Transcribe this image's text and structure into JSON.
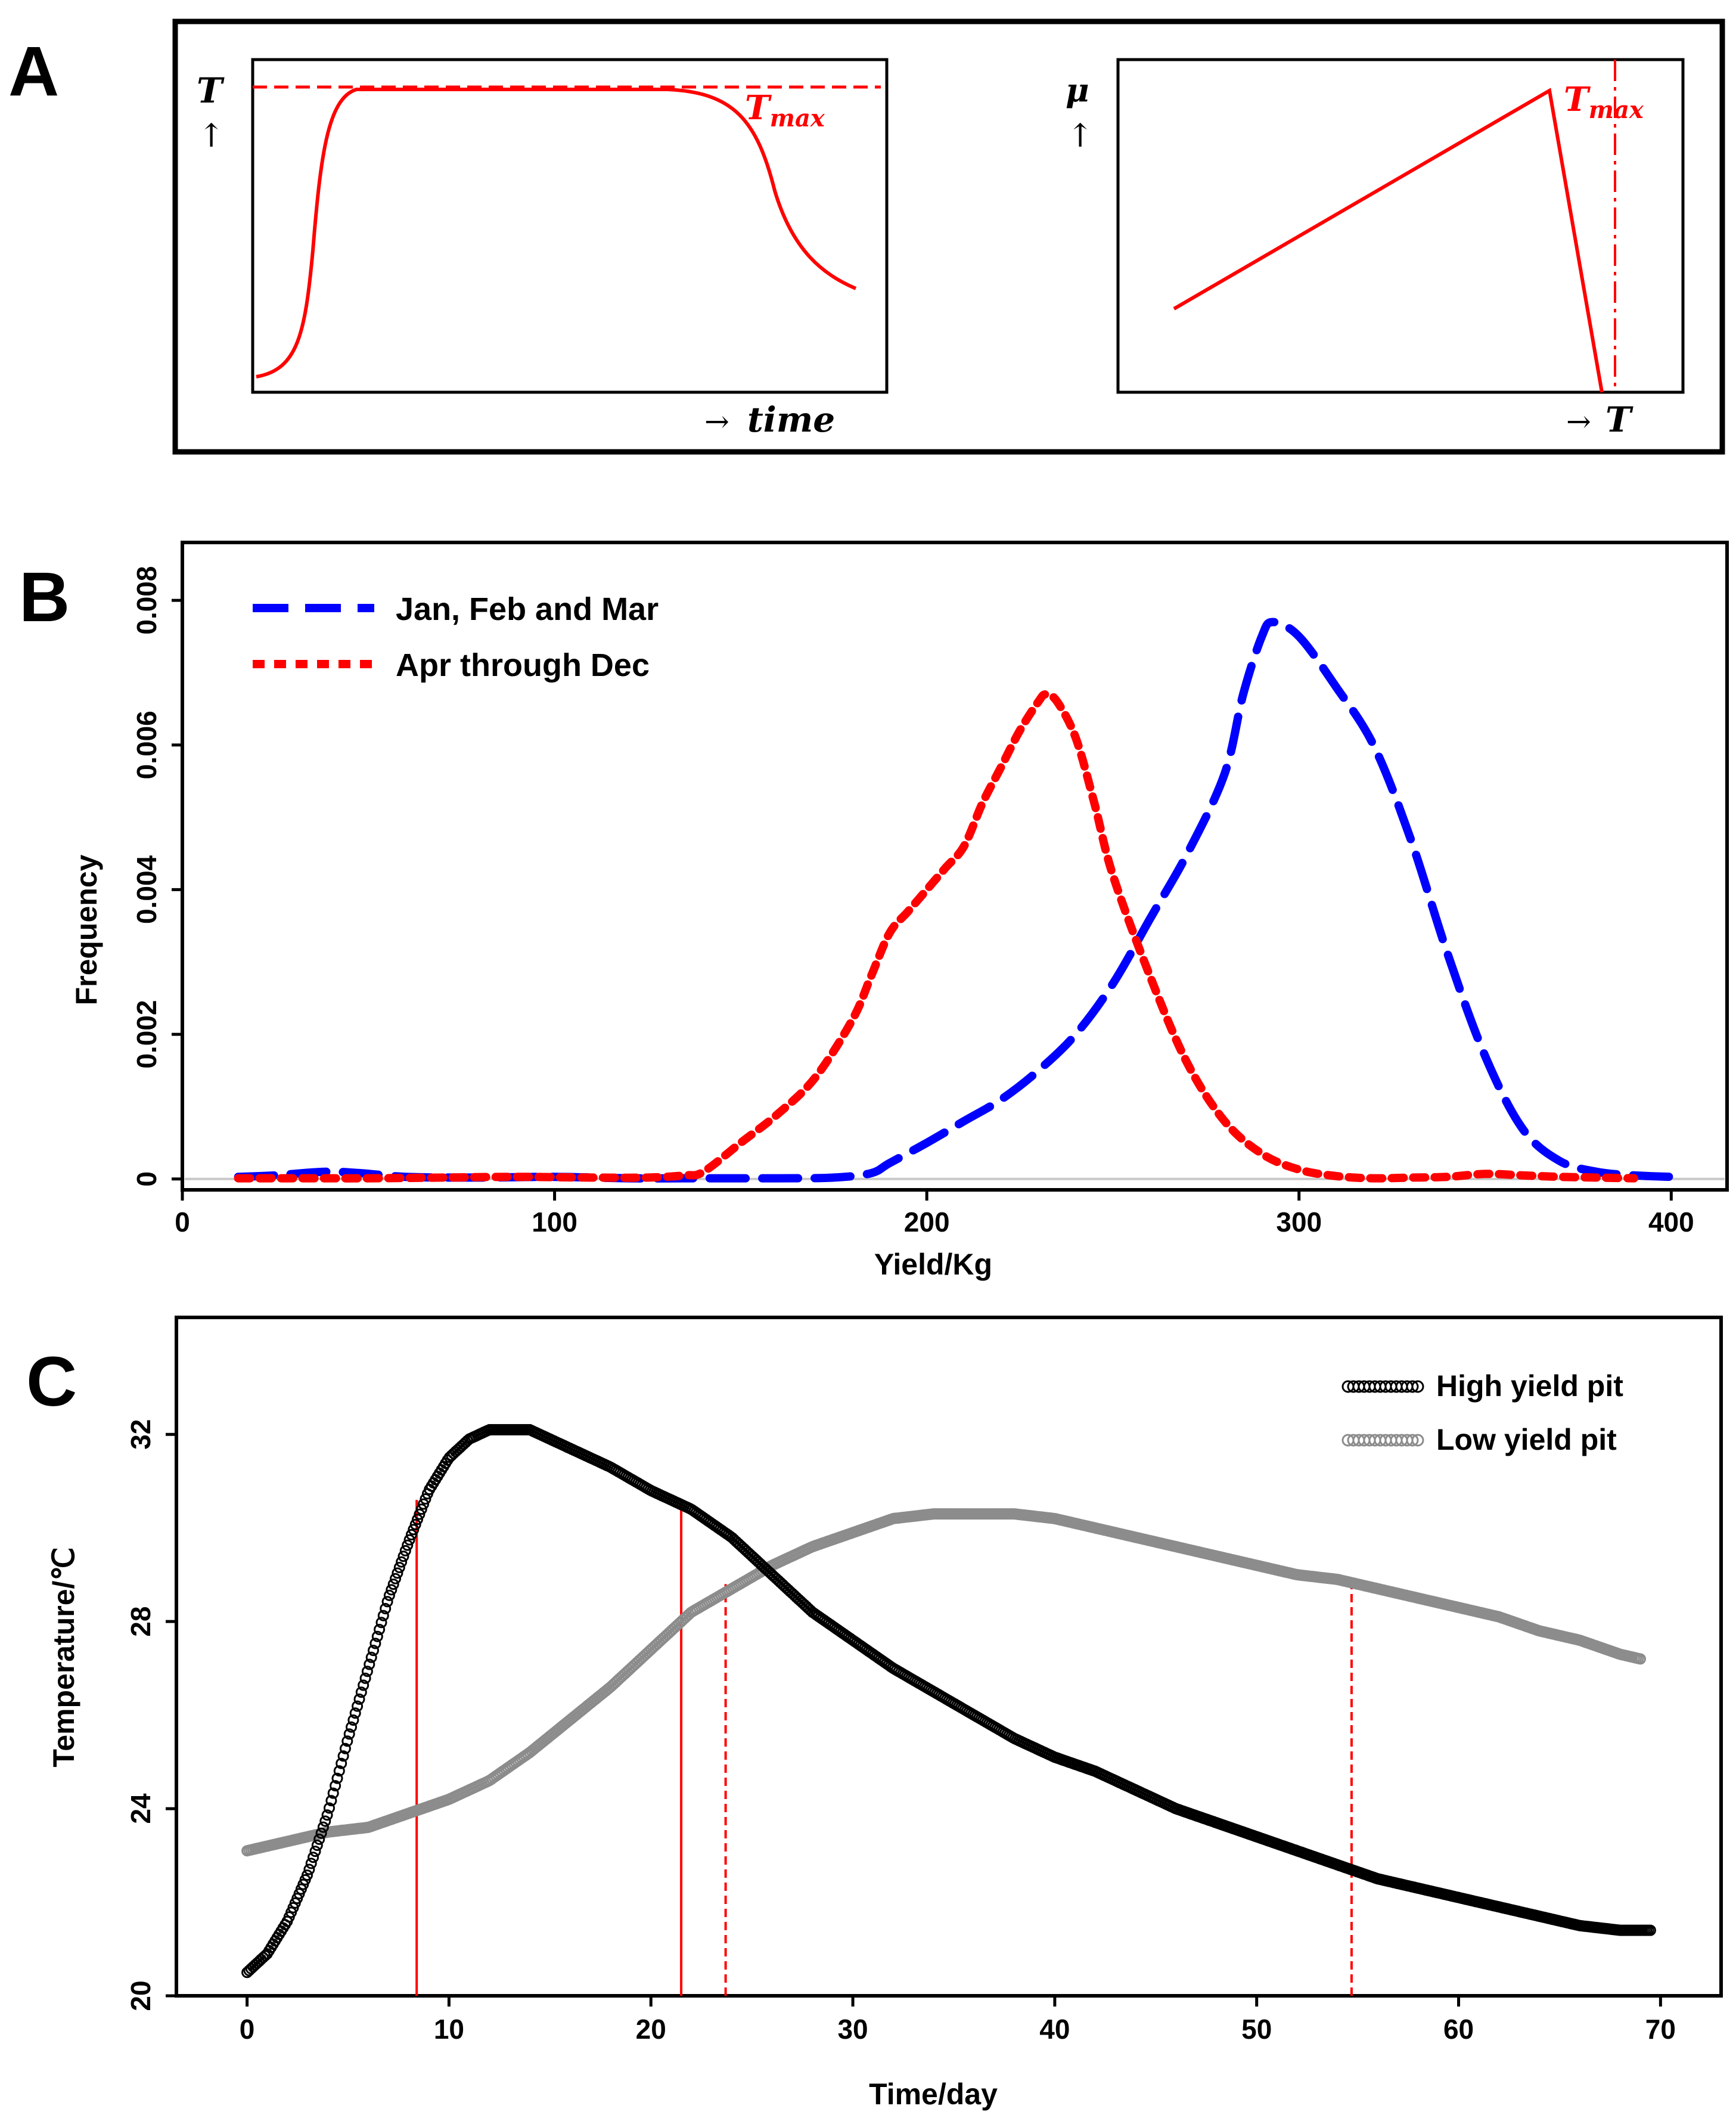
{
  "colors": {
    "red": "#ff0000",
    "blue": "#0000ff",
    "black": "#000000",
    "gray": "#8c8c8c",
    "baseline": "#c8c8c8"
  },
  "panel_a": {
    "letter": "A",
    "left_plot": {
      "y_symbol": "T",
      "y_arrow": "↑",
      "x_arrow": "→",
      "x_label": "time",
      "tmax_main": "T",
      "tmax_sub": "max"
    },
    "right_plot": {
      "y_symbol": "μ",
      "y_arrow": "↑",
      "x_arrow": "→",
      "x_label": "T",
      "tmax_main": "T",
      "tmax_sub": "max"
    }
  },
  "panel_b": {
    "letter": "B",
    "legend": [
      {
        "label": "Jan, Feb and Mar",
        "style": "long-dash",
        "color": "#0000ff"
      },
      {
        "label": "Apr through Dec",
        "style": "short-dash",
        "color": "#ff0000"
      }
    ]
  },
  "panel_c": {
    "letter": "C",
    "legend": [
      {
        "label": "High yield pit",
        "color": "#000000"
      },
      {
        "label": "Low yield pit",
        "color": "#8c8c8c"
      }
    ]
  },
  "chart_data": [
    {
      "type": "line",
      "panel": "A-left",
      "title": "",
      "xlabel": "time",
      "ylabel": "T",
      "annotation": "Tmax",
      "x": [
        0,
        1,
        2,
        3,
        4,
        5,
        6,
        7,
        8,
        9,
        10
      ],
      "series": [
        {
          "name": "T(time)",
          "values": [
            0.06,
            0.95,
            1.0,
            1.0,
            1.0,
            1.0,
            0.99,
            0.95,
            0.84,
            0.61,
            0.36
          ],
          "color": "#ff0000",
          "style": "solid"
        },
        {
          "name": "Tmax",
          "values": [
            1.0,
            1.0,
            1.0,
            1.0,
            1.0,
            1.0,
            1.0,
            1.0,
            1.0,
            1.0,
            1.0
          ],
          "color": "#ff0000",
          "style": "dashed"
        }
      ]
    },
    {
      "type": "line",
      "panel": "A-right",
      "title": "",
      "xlabel": "T",
      "ylabel": "μ",
      "annotation": "Tmax",
      "x": [
        0.0,
        0.78,
        0.85
      ],
      "series": [
        {
          "name": "μ(T)",
          "values": [
            0.26,
            0.95,
            0.0
          ],
          "color": "#ff0000",
          "style": "solid"
        }
      ],
      "vline": {
        "name": "Tmax",
        "x": 0.87,
        "color": "#ff0000",
        "style": "dash-dot"
      }
    },
    {
      "type": "line",
      "panel": "B",
      "title": "",
      "xlabel": "Yield/Kg",
      "ylabel": "Frequency",
      "xlim": [
        0,
        415
      ],
      "ylim": [
        -0.00015,
        0.0088
      ],
      "xticks": [
        0,
        100,
        200,
        300,
        400
      ],
      "yticks": [
        0,
        0.002,
        0.004,
        0.006,
        0.008
      ],
      "ytick_labels": [
        "0",
        "0.002",
        "0.004",
        "0.006",
        "0.008"
      ],
      "series": [
        {
          "name": "Jan, Feb and Mar",
          "style": "long-dash",
          "color": "#0000ff",
          "x": [
            15,
            25,
            38,
            48,
            60,
            80,
            100,
            120,
            140,
            160,
            175,
            185,
            190,
            200,
            210,
            220,
            230,
            240,
            250,
            260,
            270,
            280,
            285,
            290,
            293,
            300,
            310,
            320,
            330,
            340,
            350,
            360,
            370,
            380,
            390,
            400
          ],
          "y": [
            3e-05,
            5e-05,
            0.0001,
            8e-05,
            3e-05,
            2e-05,
            3e-05,
            1e-05,
            1e-05,
            1e-05,
            2e-05,
            8e-05,
            0.00022,
            0.0005,
            0.0008,
            0.0011,
            0.0015,
            0.002,
            0.0027,
            0.0036,
            0.0045,
            0.0056,
            0.0067,
            0.0075,
            0.0077,
            0.0075,
            0.0068,
            0.006,
            0.0047,
            0.0031,
            0.0017,
            0.0007,
            0.00025,
            0.0001,
            5e-05,
            3e-05
          ]
        },
        {
          "name": "Apr through Dec",
          "style": "short-dash",
          "color": "#ff0000",
          "x": [
            15,
            30,
            50,
            70,
            90,
            110,
            125,
            135,
            140,
            150,
            160,
            170,
            180,
            185,
            190,
            195,
            200,
            205,
            210,
            215,
            220,
            225,
            230,
            232,
            235,
            240,
            245,
            250,
            260,
            270,
            280,
            290,
            300,
            310,
            320,
            330,
            340,
            350,
            360,
            370,
            380,
            390
          ],
          "y": [
            1e-05,
            1e-05,
            1e-05,
            2e-05,
            3e-05,
            2e-05,
            2e-05,
            5e-05,
            0.0001,
            0.0005,
            0.0009,
            0.0014,
            0.0022,
            0.0028,
            0.0034,
            0.0037,
            0.004,
            0.0043,
            0.0046,
            0.0052,
            0.0057,
            0.0062,
            0.0066,
            0.0067,
            0.0066,
            0.0061,
            0.0052,
            0.0042,
            0.0028,
            0.0016,
            0.0008,
            0.00035,
            0.00013,
            4e-05,
            1e-05,
            2e-05,
            3e-05,
            7e-05,
            5e-05,
            3e-05,
            2e-05,
            1e-05
          ]
        }
      ]
    },
    {
      "type": "scatter",
      "panel": "C",
      "title": "",
      "xlabel": "Time/day",
      "ylabel": "Temperature/℃",
      "xlim": [
        -3.5,
        73
      ],
      "ylim": [
        20,
        34.5
      ],
      "xticks": [
        0,
        10,
        20,
        30,
        40,
        50,
        60,
        70
      ],
      "yticks": [
        20,
        24,
        28,
        32
      ],
      "series": [
        {
          "name": "High yield pit",
          "color": "#000000",
          "marker": "open-circle",
          "x": [
            0,
            1,
            2,
            3,
            4,
            5,
            6,
            7,
            8,
            9,
            10,
            11,
            12,
            13,
            14,
            15,
            16,
            18,
            20,
            22,
            24,
            26,
            28,
            30,
            32,
            34,
            36,
            38,
            40,
            42,
            44,
            46,
            48,
            50,
            52,
            54,
            56,
            58,
            60,
            62,
            64,
            66,
            68,
            69.5
          ],
          "y": [
            20.5,
            20.9,
            21.6,
            22.6,
            23.9,
            25.5,
            27.0,
            28.5,
            29.7,
            30.8,
            31.5,
            31.9,
            32.1,
            32.1,
            32.1,
            31.9,
            31.7,
            31.3,
            30.8,
            30.4,
            29.8,
            29.0,
            28.2,
            27.6,
            27.0,
            26.5,
            26.0,
            25.5,
            25.1,
            24.8,
            24.4,
            24.0,
            23.7,
            23.4,
            23.1,
            22.8,
            22.5,
            22.3,
            22.1,
            21.9,
            21.7,
            21.5,
            21.4,
            21.4
          ]
        },
        {
          "name": "Low yield pit",
          "color": "#8c8c8c",
          "marker": "open-circle",
          "x": [
            0,
            2,
            4,
            6,
            8,
            10,
            12,
            14,
            16,
            18,
            20,
            22,
            24,
            26,
            28,
            30,
            32,
            34,
            36,
            38,
            40,
            42,
            44,
            46,
            48,
            50,
            52,
            54,
            56,
            58,
            60,
            62,
            64,
            66,
            68,
            69
          ],
          "y": [
            23.1,
            23.3,
            23.5,
            23.6,
            23.9,
            24.2,
            24.6,
            25.2,
            25.9,
            26.6,
            27.4,
            28.2,
            28.7,
            29.2,
            29.6,
            29.9,
            30.2,
            30.3,
            30.3,
            30.3,
            30.2,
            30.0,
            29.8,
            29.6,
            29.4,
            29.2,
            29.0,
            28.9,
            28.7,
            28.5,
            28.3,
            28.1,
            27.8,
            27.6,
            27.3,
            27.2
          ]
        }
      ],
      "vlines": [
        {
          "x": 8.4,
          "y_top": 30.6,
          "style": "solid",
          "color": "#ff0000"
        },
        {
          "x": 21.5,
          "y_top": 30.6,
          "style": "solid",
          "color": "#ff0000"
        },
        {
          "x": 23.7,
          "y_top": 28.8,
          "style": "dashed",
          "color": "#ff0000"
        },
        {
          "x": 54.7,
          "y_top": 28.8,
          "style": "dashed",
          "color": "#ff0000"
        }
      ]
    }
  ]
}
